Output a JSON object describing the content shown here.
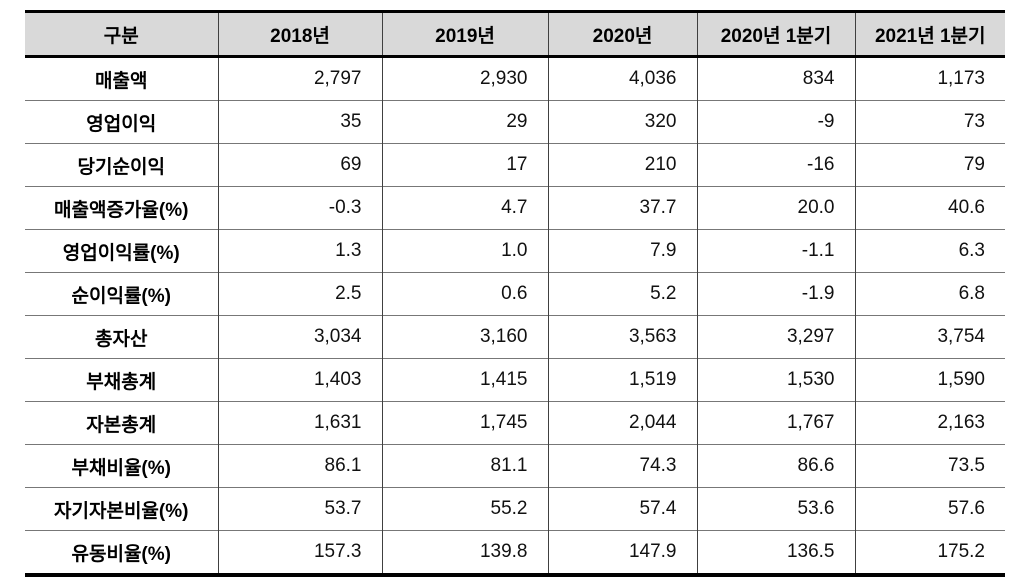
{
  "chart_data": {
    "type": "table",
    "columns": [
      "구분",
      "2018년",
      "2019년",
      "2020년",
      "2020년 1분기",
      "2021년 1분기"
    ],
    "rows": [
      {
        "label": "매출액",
        "values": [
          "2,797",
          "2,930",
          "4,036",
          "834",
          "1,173"
        ]
      },
      {
        "label": "영업이익",
        "values": [
          "35",
          "29",
          "320",
          "-9",
          "73"
        ]
      },
      {
        "label": "당기순이익",
        "values": [
          "69",
          "17",
          "210",
          "-16",
          "79"
        ]
      },
      {
        "label": "매출액증가율(%)",
        "values": [
          "-0.3",
          "4.7",
          "37.7",
          "20.0",
          "40.6"
        ]
      },
      {
        "label": "영업이익률(%)",
        "values": [
          "1.3",
          "1.0",
          "7.9",
          "-1.1",
          "6.3"
        ]
      },
      {
        "label": "순이익률(%)",
        "values": [
          "2.5",
          "0.6",
          "5.2",
          "-1.9",
          "6.8"
        ]
      },
      {
        "label": "총자산",
        "values": [
          "3,034",
          "3,160",
          "3,563",
          "3,297",
          "3,754"
        ]
      },
      {
        "label": "부채총계",
        "values": [
          "1,403",
          "1,415",
          "1,519",
          "1,530",
          "1,590"
        ]
      },
      {
        "label": "자본총계",
        "values": [
          "1,631",
          "1,745",
          "2,044",
          "1,767",
          "2,163"
        ]
      },
      {
        "label": "부채비율(%)",
        "values": [
          "86.1",
          "81.1",
          "74.3",
          "86.6",
          "73.5"
        ]
      },
      {
        "label": "자기자본비율(%)",
        "values": [
          "53.7",
          "55.2",
          "57.4",
          "53.6",
          "57.6"
        ]
      },
      {
        "label": "유동비율(%)",
        "values": [
          "157.3",
          "139.8",
          "147.9",
          "136.5",
          "175.2"
        ]
      }
    ],
    "layout": {
      "grid": "horizontal-separators-and-column-dividers",
      "outer_side_borders": false
    }
  },
  "colors": {
    "header_bg": "#d9d9d9",
    "border_strong": "#000000",
    "border_row_separator": "#777777",
    "border_column_divider": "#404040",
    "text": "#111111"
  }
}
